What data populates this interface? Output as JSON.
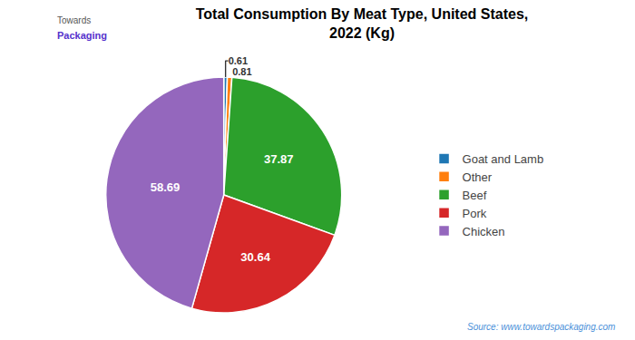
{
  "chart_data": {
    "type": "pie",
    "title": "Total Consumption By Meat Type, United States,\n2022 (Kg)",
    "categories": [
      "Goat and Lamb",
      "Other",
      "Beef",
      "Pork",
      "Chicken"
    ],
    "values": [
      0.61,
      0.81,
      37.87,
      30.64,
      58.69
    ],
    "data_labels": true,
    "legend": "right",
    "annotations": [
      "Source: www.towardspackaging.com",
      "Towards",
      "Packaging"
    ]
  }
}
